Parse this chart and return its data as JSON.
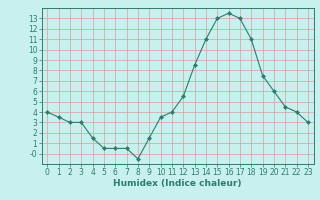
{
  "x": [
    0,
    1,
    2,
    3,
    4,
    5,
    6,
    7,
    8,
    9,
    10,
    11,
    12,
    13,
    14,
    15,
    16,
    17,
    18,
    19,
    20,
    21,
    22,
    23
  ],
  "y": [
    4,
    3.5,
    3.0,
    3.0,
    1.5,
    0.5,
    0.5,
    0.5,
    -0.5,
    1.5,
    3.5,
    4.0,
    5.5,
    8.5,
    11.0,
    13.0,
    13.5,
    13.0,
    11.0,
    7.5,
    6.0,
    4.5,
    4.0,
    3.0
  ],
  "line_color": "#2e7d6e",
  "marker": "D",
  "marker_size": 2.0,
  "bg_color": "#c8f0ee",
  "grid_color": "#b0dbd8",
  "xlabel": "Humidex (Indice chaleur)",
  "xlim": [
    -0.5,
    23.5
  ],
  "ylim": [
    -1,
    14
  ],
  "xticks": [
    0,
    1,
    2,
    3,
    4,
    5,
    6,
    7,
    8,
    9,
    10,
    11,
    12,
    13,
    14,
    15,
    16,
    17,
    18,
    19,
    20,
    21,
    22,
    23
  ],
  "yticks": [
    0,
    1,
    2,
    3,
    4,
    5,
    6,
    7,
    8,
    9,
    10,
    11,
    12,
    13
  ],
  "ytick_labels": [
    "-0",
    "1",
    "2",
    "3",
    "4",
    "5",
    "6",
    "7",
    "8",
    "9",
    "10",
    "11",
    "12",
    "13"
  ],
  "xlabel_fontsize": 6.5,
  "tick_fontsize": 5.5,
  "linewidth": 0.8
}
